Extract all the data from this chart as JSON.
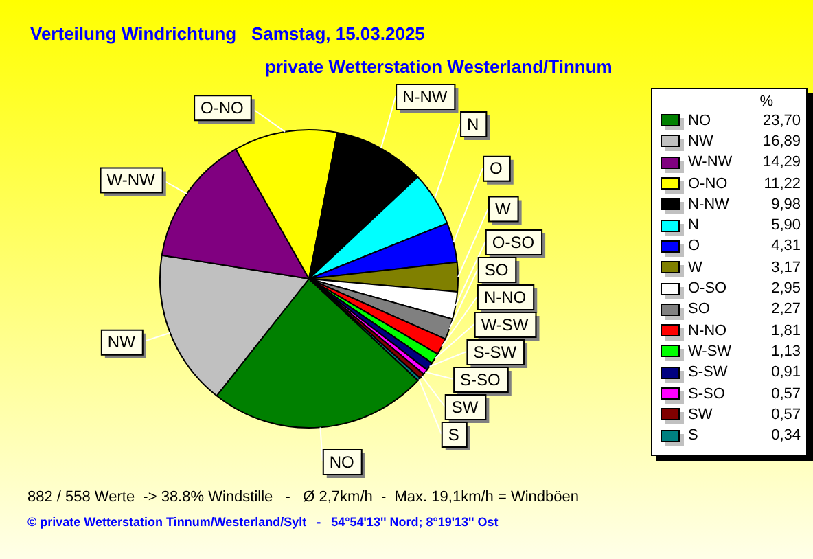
{
  "chart_data": {
    "type": "pie",
    "title": "Verteilung Windrichtung   Samstag, 15.03.2025",
    "subtitle": "private Wetterstation Westerland/Tinnum",
    "legend_title": "%",
    "legend": "right",
    "categories": [
      "NO",
      "NW",
      "W-NW",
      "O-NO",
      "N-NW",
      "N",
      "O",
      "W",
      "O-SO",
      "SO",
      "N-NO",
      "W-SW",
      "S-SW",
      "S-SO",
      "SW",
      "S"
    ],
    "values": [
      23.7,
      16.89,
      14.29,
      11.22,
      9.98,
      5.9,
      4.31,
      3.17,
      2.95,
      2.27,
      1.81,
      1.13,
      0.91,
      0.57,
      0.57,
      0.34
    ],
    "value_labels": [
      "23,70",
      "16,89",
      "14,29",
      "11,22",
      "9,98",
      "5,90",
      "4,31",
      "3,17",
      "2,95",
      "2,27",
      "1,81",
      "1,13",
      "0,91",
      "0,57",
      "0,57",
      "0,34"
    ],
    "colors": [
      "#008000",
      "#c0c0c0",
      "#800080",
      "#ffff00",
      "#000000",
      "#00ffff",
      "#0000ff",
      "#808000",
      "#ffffff",
      "#808080",
      "#ff0000",
      "#00ff00",
      "#000080",
      "#ff00ff",
      "#800000",
      "#008080"
    ],
    "annotations": [
      "882 / 558 Werte  -> 38.8% Windstille   -   Ø 2,7km/h  -  Max. 19,1km/h = Windböen",
      "© private Wetterstation Tinnum/Westerland/Sylt   -   54°54'13'' Nord; 8°19'13'' Ost"
    ]
  }
}
